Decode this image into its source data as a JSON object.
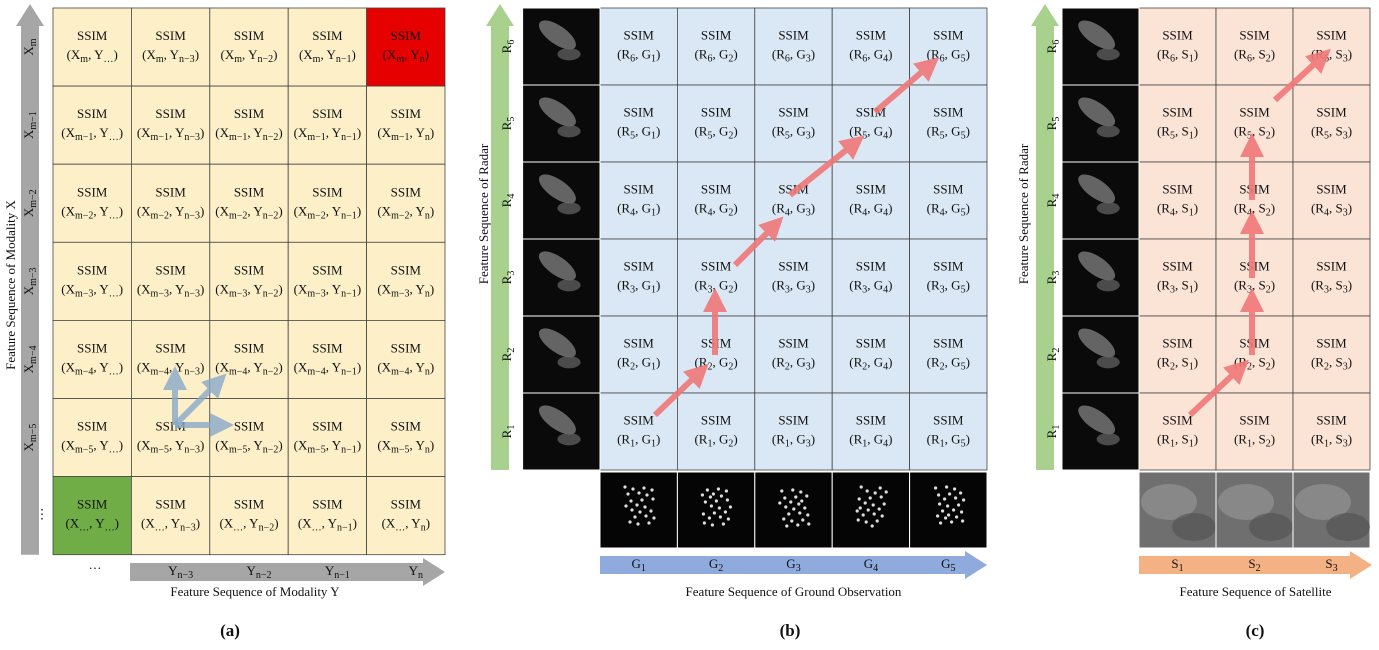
{
  "panels": [
    {
      "caption": "(a)",
      "axis_y_title": "Feature Sequence of Modality X",
      "axis_x_title": "Feature Sequence of Modality Y",
      "row_labels": [
        "X_{m}",
        "X_{m−1}",
        "X_{m−2}",
        "X_{m−3}",
        "X_{m−4}",
        "X_{m−5}",
        "⋮"
      ],
      "col_labels": [
        "…",
        "Y_{n−3}",
        "Y_{n−2}",
        "Y_{n−1}",
        "Y_{n}"
      ],
      "cells": [
        [
          [
            "SSIM",
            "(X_{m}, Y_{…})"
          ],
          [
            "SSIM",
            "(X_{m}, Y_{n−3})"
          ],
          [
            "SSIM",
            "(X_{m}, Y_{n−2})"
          ],
          [
            "SSIM",
            "(X_{m}, Y_{n−1})"
          ],
          [
            "SSIM",
            "(X_{m}, Y_{n})"
          ]
        ],
        [
          [
            "SSIM",
            "(X_{m−1}, Y_{…})"
          ],
          [
            "SSIM",
            "(X_{m−1}, Y_{n−3})"
          ],
          [
            "SSIM",
            "(X_{m−1}, Y_{n−2})"
          ],
          [
            "SSIM",
            "(X_{m−1}, Y_{n−1})"
          ],
          [
            "SSIM",
            "(X_{m−1}, Y_{n})"
          ]
        ],
        [
          [
            "SSIM",
            "(X_{m−2}, Y_{…})"
          ],
          [
            "SSIM",
            "(X_{m−2}, Y_{n−3})"
          ],
          [
            "SSIM",
            "(X_{m−2}, Y_{n−2})"
          ],
          [
            "SSIM",
            "(X_{m−2}, Y_{n−1})"
          ],
          [
            "SSIM",
            "(X_{m−2}, Y_{n})"
          ]
        ],
        [
          [
            "SSIM",
            "(X_{m−3}, Y_{…})"
          ],
          [
            "SSIM",
            "(X_{m−3}, Y_{n−3})"
          ],
          [
            "SSIM",
            "(X_{m−3}, Y_{n−2})"
          ],
          [
            "SSIM",
            "(X_{m−3}, Y_{n−1})"
          ],
          [
            "SSIM",
            "(X_{m−3}, Y_{n})"
          ]
        ],
        [
          [
            "SSIM",
            "(X_{m−4}, Y_{…})"
          ],
          [
            "SSIM",
            "(X_{m−4}, Y_{n−3})"
          ],
          [
            "SSIM",
            "(X_{m−4}, Y_{n−2})"
          ],
          [
            "SSIM",
            "(X_{m−4}, Y_{n−1})"
          ],
          [
            "SSIM",
            "(X_{m−4}, Y_{n})"
          ]
        ],
        [
          [
            "SSIM",
            "(X_{m−5}, Y_{…})"
          ],
          [
            "SSIM",
            "(X_{m−5}, Y_{n−3})"
          ],
          [
            "SSIM",
            "(X_{m−5}, Y_{n−2})"
          ],
          [
            "SSIM",
            "(X_{m−5}, Y_{n−1})"
          ],
          [
            "SSIM",
            "(X_{m−5}, Y_{n})"
          ]
        ],
        [
          [
            "SSIM",
            "(X_{…}, Y_{…})"
          ],
          [
            "SSIM",
            "(X_{…}, Y_{n−3})"
          ],
          [
            "SSIM",
            "(X_{…}, Y_{n−2})"
          ],
          [
            "SSIM",
            "(X_{…}, Y_{n−1})"
          ],
          [
            "SSIM",
            "(X_{…}, Y_{n})"
          ]
        ]
      ]
    },
    {
      "caption": "(b)",
      "axis_y_title": "Feature Sequence of Radar",
      "axis_x_title": "Feature Sequence of Ground Observation",
      "row_labels": [
        "R_{6}",
        "R_{5}",
        "R_{4}",
        "R_{3}",
        "R_{2}",
        "R_{1}"
      ],
      "col_labels": [
        "G_{1}",
        "G_{2}",
        "G_{3}",
        "G_{4}",
        "G_{5}"
      ],
      "cells": [
        [
          [
            "SSIM",
            "(R_{6}, G_{1})"
          ],
          [
            "SSIM",
            "(R_{6}, G_{2})"
          ],
          [
            "SSIM",
            "(R_{6}, G_{3})"
          ],
          [
            "SSIM",
            "(R_{6}, G_{4})"
          ],
          [
            "SSIM",
            "(R_{6}, G_{5})"
          ]
        ],
        [
          [
            "SSIM",
            "(R_{5}, G_{1})"
          ],
          [
            "SSIM",
            "(R_{5}, G_{2})"
          ],
          [
            "SSIM",
            "(R_{5}, G_{3})"
          ],
          [
            "SSIM",
            "(R_{5}, G_{4})"
          ],
          [
            "SSIM",
            "(R_{5}, G_{5})"
          ]
        ],
        [
          [
            "SSIM",
            "(R_{4}, G_{1})"
          ],
          [
            "SSIM",
            "(R_{4}, G_{2})"
          ],
          [
            "SSIM",
            "(R_{4}, G_{3})"
          ],
          [
            "SSIM",
            "(R_{4}, G_{4})"
          ],
          [
            "SSIM",
            "(R_{4}, G_{5})"
          ]
        ],
        [
          [
            "SSIM",
            "(R_{3}, G_{1})"
          ],
          [
            "SSIM",
            "(R_{3}, G_{2})"
          ],
          [
            "SSIM",
            "(R_{3}, G_{3})"
          ],
          [
            "SSIM",
            "(R_{3}, G_{4})"
          ],
          [
            "SSIM",
            "(R_{3}, G_{5})"
          ]
        ],
        [
          [
            "SSIM",
            "(R_{2}, G_{1})"
          ],
          [
            "SSIM",
            "(R_{2}, G_{2})"
          ],
          [
            "SSIM",
            "(R_{2}, G_{3})"
          ],
          [
            "SSIM",
            "(R_{2}, G_{4})"
          ],
          [
            "SSIM",
            "(R_{2}, G_{5})"
          ]
        ],
        [
          [
            "SSIM",
            "(R_{1}, G_{1})"
          ],
          [
            "SSIM",
            "(R_{1}, G_{2})"
          ],
          [
            "SSIM",
            "(R_{1}, G_{3})"
          ],
          [
            "SSIM",
            "(R_{1}, G_{4})"
          ],
          [
            "SSIM",
            "(R_{1}, G_{5})"
          ]
        ]
      ]
    },
    {
      "caption": "(c)",
      "axis_y_title": "Feature Sequence of Radar",
      "axis_x_title": "Feature Sequence of Satellite",
      "row_labels": [
        "R_{6}",
        "R_{5}",
        "R_{4}",
        "R_{3}",
        "R_{2}",
        "R_{1}"
      ],
      "col_labels": [
        "S_{1}",
        "S_{2}",
        "S_{3}"
      ],
      "cells": [
        [
          [
            "SSIM",
            "(R_{6}, S_{1})"
          ],
          [
            "SSIM",
            "(R_{6}, S_{2})"
          ],
          [
            "SSIM",
            "(R_{6}, S_{3})"
          ]
        ],
        [
          [
            "SSIM",
            "(R_{5}, S_{1})"
          ],
          [
            "SSIM",
            "(R_{5}, S_{2})"
          ],
          [
            "SSIM",
            "(R_{5}, S_{3})"
          ]
        ],
        [
          [
            "SSIM",
            "(R_{4}, S_{1})"
          ],
          [
            "SSIM",
            "(R_{4}, S_{2})"
          ],
          [
            "SSIM",
            "(R_{4}, S_{3})"
          ]
        ],
        [
          [
            "SSIM",
            "(R_{3}, S_{1})"
          ],
          [
            "SSIM",
            "(R_{3}, S_{2})"
          ],
          [
            "SSIM",
            "(R_{3}, S_{3})"
          ]
        ],
        [
          [
            "SSIM",
            "(R_{2}, S_{1})"
          ],
          [
            "SSIM",
            "(R_{2}, S_{2})"
          ],
          [
            "SSIM",
            "(R_{2}, S_{3})"
          ]
        ],
        [
          [
            "SSIM",
            "(R_{1}, S_{1})"
          ],
          [
            "SSIM",
            "(R_{1}, S_{2})"
          ],
          [
            "SSIM",
            "(R_{1}, S_{3})"
          ]
        ]
      ]
    }
  ]
}
